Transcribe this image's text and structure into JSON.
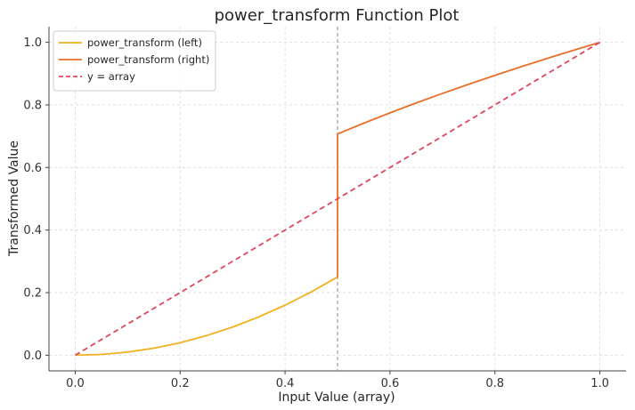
{
  "chart_data": {
    "type": "line",
    "title": "power_transform Function Plot",
    "xlabel": "Input Value (array)",
    "ylabel": "Transformed Value",
    "xlim": [
      -0.05,
      1.05
    ],
    "ylim": [
      -0.05,
      1.05
    ],
    "xticks": [
      0.0,
      0.2,
      0.4,
      0.6,
      0.8,
      1.0
    ],
    "xtick_labels": [
      "0.0",
      "0.2",
      "0.4",
      "0.6",
      "0.8",
      "1.0"
    ],
    "yticks": [
      0.0,
      0.2,
      0.4,
      0.6,
      0.8,
      1.0
    ],
    "ytick_labels": [
      "0.0",
      "0.2",
      "0.4",
      "0.6",
      "0.8",
      "1.0"
    ],
    "grid": true,
    "legend_position": "top-left",
    "vertical_line": {
      "x": 0.5,
      "style": "dashed",
      "color": "#888888"
    },
    "series": [
      {
        "name": "power_transform (left)",
        "color": "#f2b01e",
        "style": "solid",
        "x": [
          0.0,
          0.05,
          0.1,
          0.15,
          0.2,
          0.25,
          0.3,
          0.35,
          0.4,
          0.45,
          0.5
        ],
        "y": [
          0.0,
          0.0025,
          0.01,
          0.0225,
          0.04,
          0.0625,
          0.09,
          0.1225,
          0.16,
          0.2025,
          0.25
        ]
      },
      {
        "name": "power_transform (right)",
        "color": "#e8702a",
        "style": "solid",
        "x": [
          0.5,
          0.5,
          0.55,
          0.6,
          0.65,
          0.7,
          0.75,
          0.8,
          0.85,
          0.9,
          0.95,
          1.0
        ],
        "y": [
          0.25,
          0.7071,
          0.7416,
          0.7746,
          0.8062,
          0.8367,
          0.866,
          0.8944,
          0.922,
          0.9487,
          0.9747,
          1.0
        ]
      },
      {
        "name": "y = array",
        "color": "#e0475f",
        "style": "dashed",
        "x": [
          0.0,
          1.0
        ],
        "y": [
          0.0,
          1.0
        ]
      }
    ]
  }
}
